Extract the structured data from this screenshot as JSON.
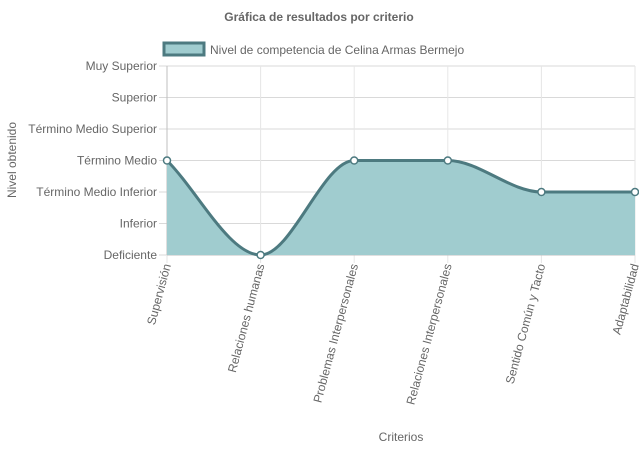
{
  "chart_data": {
    "type": "area",
    "title": "Gráfica de resultados por criterio",
    "xlabel": "Criterios",
    "ylabel": "Nivel obtenido",
    "categories": [
      "Supervisión",
      "Relaciones humanas",
      "Problemas Interpersonales",
      "Relaciones Interpersonales",
      "Sentido Común y Tacto",
      "Adaptabilidad"
    ],
    "y_levels": [
      "Deficiente",
      "Inferior",
      "Término Medio Inferior",
      "Término Medio",
      "Término Medio Superior",
      "Superior",
      "Muy Superior"
    ],
    "series": [
      {
        "name": "Nivel de competencia de Celina Armas Bermejo",
        "values": [
          3,
          0,
          3,
          3,
          2,
          2
        ],
        "fill_color": "#a0cccf",
        "line_color": "#4d7a80"
      }
    ],
    "legend_position": "top",
    "grid": true
  }
}
